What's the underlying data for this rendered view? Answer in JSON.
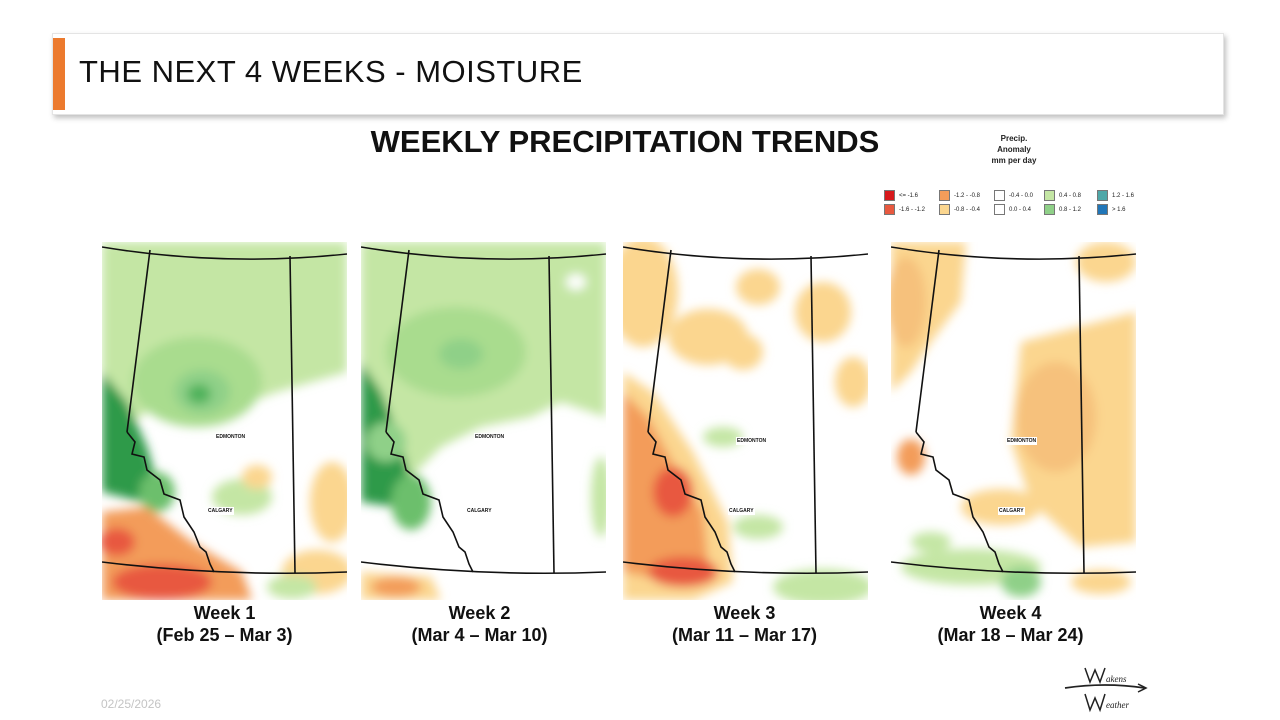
{
  "header": {
    "title": "THE NEXT 4 WEEKS - MOISTURE"
  },
  "main": {
    "heading": "WEEKLY PRECIPITATION TRENDS"
  },
  "legend": {
    "title_lines": [
      "Precip.",
      "Anomaly",
      "mm per day"
    ],
    "items": [
      {
        "label": "<= -1.6",
        "color": "#d7191c"
      },
      {
        "label": "-1.6 - -1.2",
        "color": "#e8593f"
      },
      {
        "label": "-1.2 - -0.8",
        "color": "#f39c5a"
      },
      {
        "label": "-0.8 - -0.4",
        "color": "#fbd68f"
      },
      {
        "label": "-0.4 - 0.0",
        "color": "#ffffff"
      },
      {
        "label": "0.0 - 0.4",
        "color": "#ffffff"
      },
      {
        "label": "0.4 - 0.8",
        "color": "#c4e6a4"
      },
      {
        "label": "0.8 - 1.2",
        "color": "#8fd088"
      },
      {
        "label": "1.2 - 1.6",
        "color": "#4ea7a8"
      },
      {
        "label": "> 1.6",
        "color": "#2176b8"
      }
    ]
  },
  "maps": [
    {
      "week": "Week 1",
      "dates": "(Feb 25 – Mar 3)",
      "city1": "EDMONTON",
      "city2": "CALGARY"
    },
    {
      "week": "Week 2",
      "dates": "(Mar 4 – Mar 10)",
      "city1": "EDMONTON",
      "city2": "CALGARY"
    },
    {
      "week": "Week 3",
      "dates": "(Mar 11 – Mar 17)",
      "city1": "EDMONTON",
      "city2": "CALGARY"
    },
    {
      "week": "Week 4",
      "dates": "(Mar 18 – Mar 24)",
      "city1": "EDMONTON",
      "city2": "CALGARY"
    }
  ],
  "footer": {
    "date": "02/25/2026"
  },
  "logo": {
    "line1": "akens",
    "line2": "eather"
  },
  "colors": {
    "accent": "#ec7a2e"
  }
}
